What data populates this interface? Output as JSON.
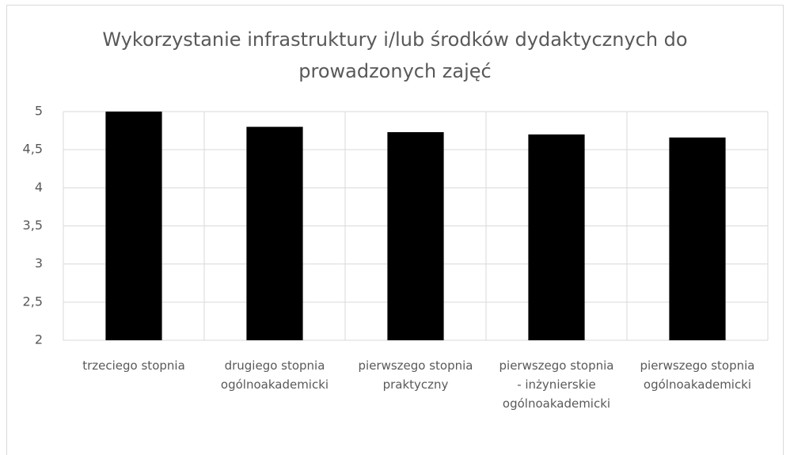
{
  "chart_data": {
    "type": "bar",
    "title": "Wykorzystanie infrastruktury i/lub środków dydaktycznych do prowadzonych zajęć",
    "categories": [
      "trzeciego stopnia",
      "drugiego stopnia ogólnoakademicki",
      "pierwszego stopnia praktyczny",
      "pierwszego stopnia - inżynierskie ogólnoakademicki",
      "pierwszego stopnia ogólnoakademicki"
    ],
    "values": [
      5.0,
      4.8,
      4.73,
      4.7,
      4.66
    ],
    "color": "#000000",
    "ylim": [
      2,
      5
    ],
    "yticks": [
      2,
      {
        "value": 2.5,
        "label": "2,5"
      },
      3,
      {
        "value": 3.5,
        "label": "3,5"
      },
      4,
      {
        "value": 4.5,
        "label": "4,5"
      },
      5
    ],
    "grid": true
  }
}
